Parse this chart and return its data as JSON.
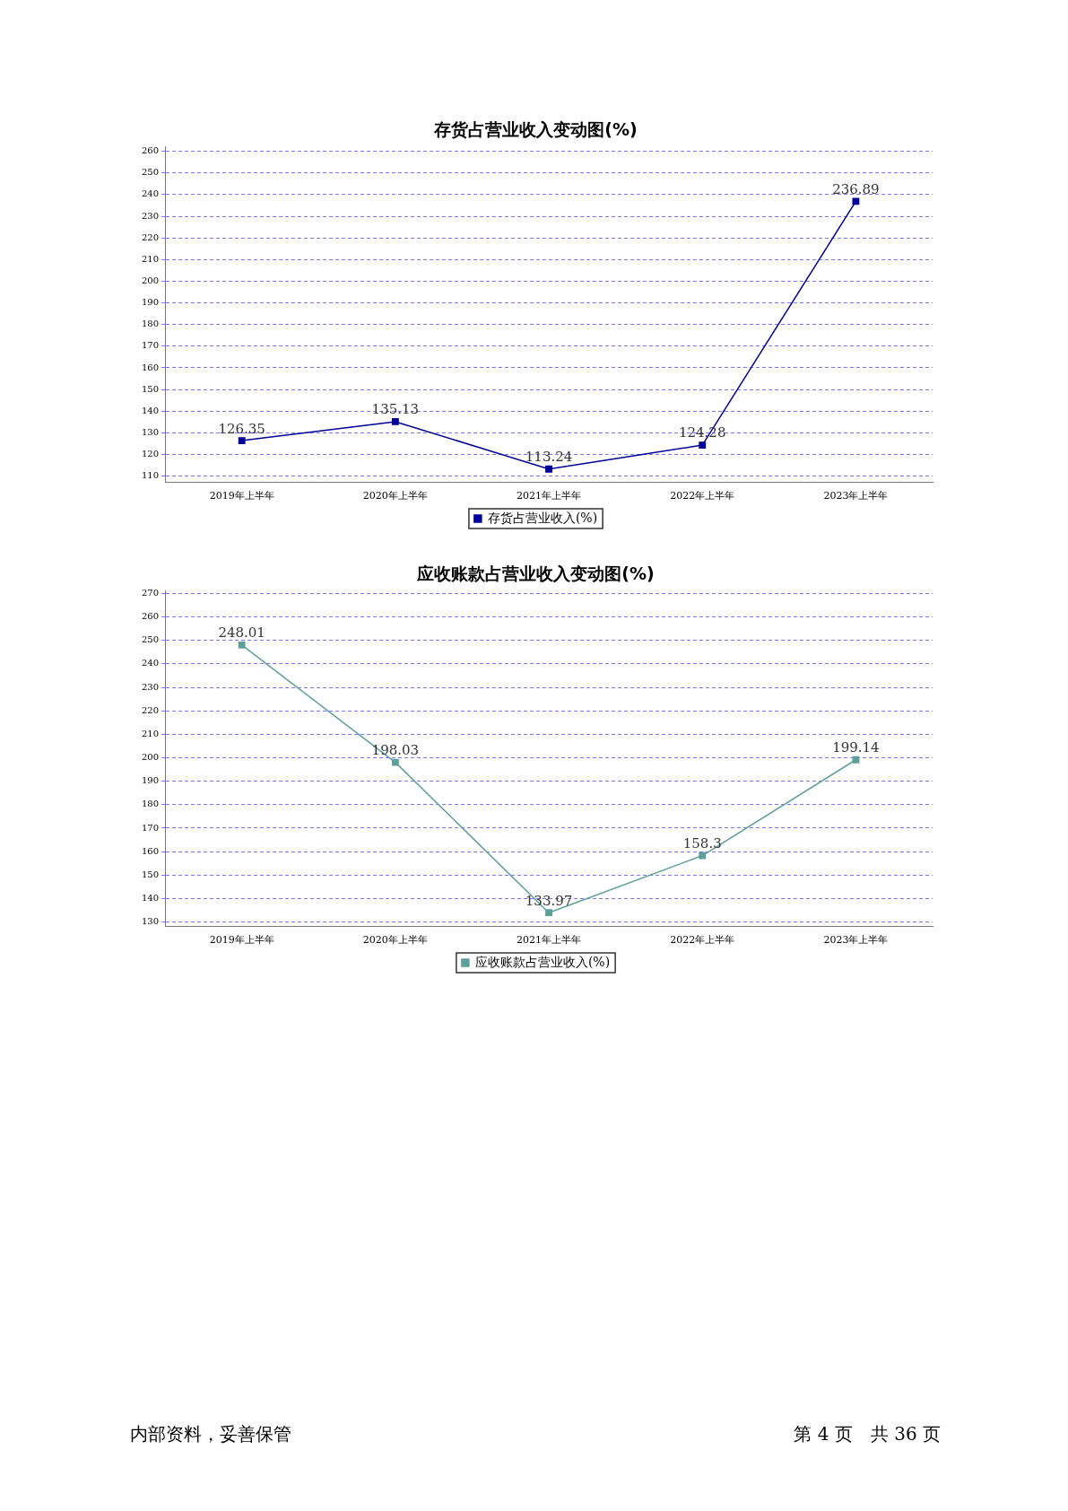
{
  "chart_data": [
    {
      "type": "line",
      "title": "存货占营业收入变动图(%)",
      "categories": [
        "2019年上半年",
        "2020年上半年",
        "2021年上半年",
        "2022年上半年",
        "2023年上半年"
      ],
      "series": [
        {
          "name": "存货占营业收入(%)",
          "color": "#000099",
          "values": [
            126.35,
            135.13,
            113.24,
            124.28,
            236.89
          ]
        }
      ],
      "ylim": [
        107,
        262
      ],
      "yticks": [
        110,
        120,
        130,
        140,
        150,
        160,
        170,
        180,
        190,
        200,
        210,
        220,
        230,
        240,
        250,
        260
      ],
      "grid": "y",
      "legend": "bottom",
      "marker": "square",
      "data_labels": true
    },
    {
      "type": "line",
      "title": "应收账款占营业收入变动图(%)",
      "categories": [
        "2019年上半年",
        "2020年上半年",
        "2021年上半年",
        "2022年上半年",
        "2023年上半年"
      ],
      "series": [
        {
          "name": "应收账款占营业收入(%)",
          "color": "#5f9f9a",
          "values": [
            248.01,
            198.03,
            133.97,
            158.3,
            199.14
          ]
        }
      ],
      "ylim": [
        128,
        271
      ],
      "yticks": [
        130,
        140,
        150,
        160,
        170,
        180,
        190,
        200,
        210,
        220,
        230,
        240,
        250,
        260,
        270
      ],
      "grid": "y",
      "legend": "bottom",
      "marker": "square",
      "data_labels": true,
      "annotations": [
        "内部资料，妥善保管",
        "第 4 页　共 36 页"
      ]
    }
  ]
}
